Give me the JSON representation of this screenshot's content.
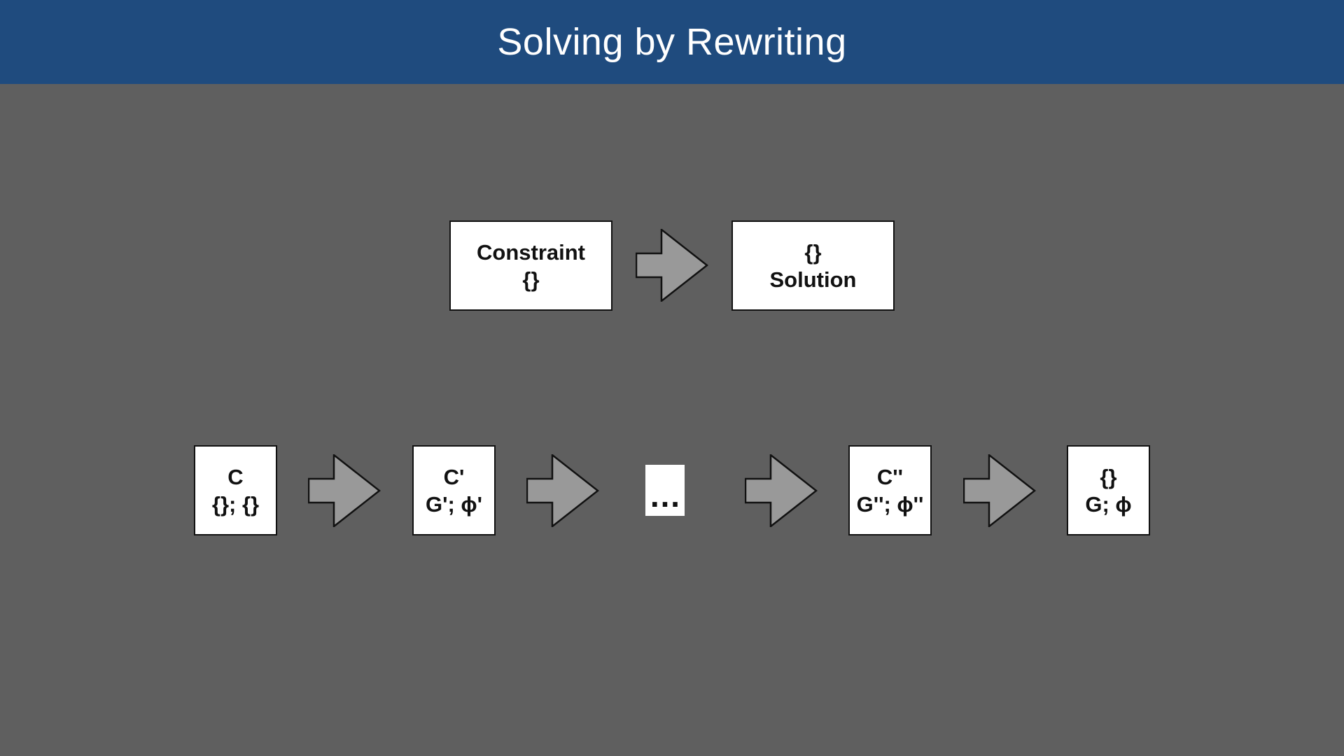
{
  "title": "Solving by Rewriting",
  "top_row": {
    "left_box": {
      "line1": "Constraint",
      "line2": "{}"
    },
    "right_box": {
      "line1": "{}",
      "line2": "Solution"
    }
  },
  "bottom_row": {
    "box1": {
      "line1": "C",
      "line2": "{}; {}"
    },
    "box2": {
      "line1": "C'",
      "line2": "G'; ϕ'"
    },
    "ellipsis": "…",
    "box3": {
      "line1": "C''",
      "line2": "G''; ϕ''"
    },
    "box4": {
      "line1": "{}",
      "line2": "G; ϕ"
    }
  },
  "colors": {
    "title_bar": "#1f4b7e",
    "background": "#5f5f5f",
    "arrow_fill": "#999999",
    "box_fill": "#ffffff"
  }
}
